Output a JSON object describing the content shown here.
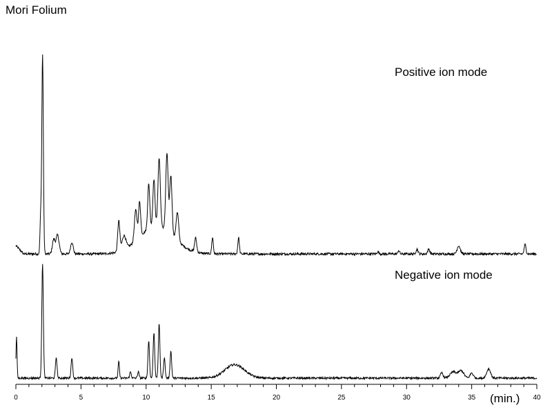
{
  "chart_data": {
    "type": "line",
    "title": "Mori Folium",
    "xlabel": "(min.)",
    "xlim": [
      0,
      40
    ],
    "x_ticks": [
      0,
      5,
      10,
      15,
      20,
      25,
      30,
      35,
      40
    ],
    "colors": {
      "trace": "#000000",
      "axis": "#000000"
    },
    "series": [
      {
        "name": "Positive ion mode",
        "baseline": 0,
        "noise": 0.005,
        "peaks": [
          {
            "t": 2.05,
            "h": 0.85,
            "w": 0.06
          },
          {
            "t": 1.9,
            "h": 0.15,
            "w": 0.05
          },
          {
            "t": 2.9,
            "h": 0.06,
            "w": 0.1
          },
          {
            "t": 3.2,
            "h": 0.08,
            "w": 0.12
          },
          {
            "t": 4.3,
            "h": 0.05,
            "w": 0.1
          },
          {
            "t": 7.9,
            "h": 0.13,
            "w": 0.08
          },
          {
            "t": 8.3,
            "h": 0.06,
            "w": 0.15
          },
          {
            "t": 9.2,
            "h": 0.13,
            "w": 0.1
          },
          {
            "t": 9.5,
            "h": 0.15,
            "w": 0.08
          },
          {
            "t": 10.2,
            "h": 0.19,
            "w": 0.08
          },
          {
            "t": 10.6,
            "h": 0.2,
            "w": 0.08
          },
          {
            "t": 11.0,
            "h": 0.29,
            "w": 0.09
          },
          {
            "t": 11.6,
            "h": 0.33,
            "w": 0.09
          },
          {
            "t": 11.9,
            "h": 0.25,
            "w": 0.09
          },
          {
            "t": 12.4,
            "h": 0.12,
            "w": 0.1
          },
          {
            "t": 13.8,
            "h": 0.06,
            "w": 0.08
          },
          {
            "t": 15.1,
            "h": 0.07,
            "w": 0.06
          },
          {
            "t": 17.1,
            "h": 0.07,
            "w": 0.06
          },
          {
            "t": 10.8,
            "h": 0.12,
            "w": 1.3
          },
          {
            "t": 27.8,
            "h": 0.01,
            "w": 0.06
          },
          {
            "t": 29.4,
            "h": 0.015,
            "w": 0.06
          },
          {
            "t": 30.8,
            "h": 0.02,
            "w": 0.08
          },
          {
            "t": 31.7,
            "h": 0.02,
            "w": 0.08
          },
          {
            "t": 34.0,
            "h": 0.035,
            "w": 0.12
          },
          {
            "t": 39.1,
            "h": 0.04,
            "w": 0.07
          }
        ]
      },
      {
        "name": "Negative ion mode",
        "baseline": 0,
        "noise": 0.005,
        "peaks": [
          {
            "t": 0.05,
            "h": 0.2,
            "w": 0.04
          },
          {
            "t": 2.05,
            "h": 0.55,
            "w": 0.06
          },
          {
            "t": 3.1,
            "h": 0.1,
            "w": 0.06
          },
          {
            "t": 4.3,
            "h": 0.1,
            "w": 0.06
          },
          {
            "t": 7.9,
            "h": 0.08,
            "w": 0.05
          },
          {
            "t": 8.8,
            "h": 0.03,
            "w": 0.06
          },
          {
            "t": 9.4,
            "h": 0.03,
            "w": 0.06
          },
          {
            "t": 10.2,
            "h": 0.18,
            "w": 0.06
          },
          {
            "t": 10.6,
            "h": 0.22,
            "w": 0.06
          },
          {
            "t": 11.0,
            "h": 0.26,
            "w": 0.06
          },
          {
            "t": 11.4,
            "h": 0.1,
            "w": 0.06
          },
          {
            "t": 11.9,
            "h": 0.13,
            "w": 0.06
          },
          {
            "t": 16.8,
            "h": 0.065,
            "w": 0.75
          },
          {
            "t": 32.7,
            "h": 0.025,
            "w": 0.1
          },
          {
            "t": 33.6,
            "h": 0.03,
            "w": 0.25
          },
          {
            "t": 34.2,
            "h": 0.035,
            "w": 0.2
          },
          {
            "t": 35.0,
            "h": 0.025,
            "w": 0.12
          },
          {
            "t": 36.3,
            "h": 0.045,
            "w": 0.15
          }
        ]
      }
    ]
  }
}
